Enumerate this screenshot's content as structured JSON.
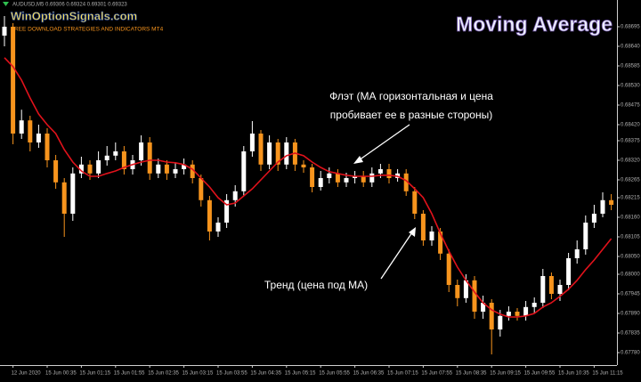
{
  "chart_data": {
    "type": "candlestick",
    "title": "Moving Average",
    "watermark": "WinOptionSignals.com",
    "watermark_subtitle": "FREE DOWNLOAD STRATEGIES AND INDICATORS MT4",
    "symbol_info": "AUDUSD,M5  0.69306 0.69324 0.69301 0.69323",
    "annotations": [
      "Флэт (МА горизонтальная и цена",
      "пробивает ее в разные стороны)",
      "Тренд (цена под МА)"
    ],
    "categories": [
      null,
      "12 Jun 2020",
      null,
      null,
      null,
      "15 Jun 00:35",
      null,
      null,
      null,
      "15 Jun 01:15",
      null,
      null,
      null,
      "15 Jun 01:55",
      null,
      null,
      null,
      "15 Jun 02:35",
      null,
      null,
      null,
      "15 Jun 03:15",
      null,
      null,
      null,
      "15 Jun 03:55",
      null,
      null,
      null,
      "15 Jun 04:35",
      null,
      null,
      null,
      "15 Jun 05:15",
      null,
      null,
      null,
      "15 Jun 05:55",
      null,
      null,
      null,
      "15 Jun 06:35",
      null,
      null,
      null,
      "15 Jun 07:15",
      null,
      null,
      null,
      "15 Jun 07:55",
      null,
      null,
      null,
      "15 Jun 08:35",
      null,
      null,
      null,
      "15 Jun 09:15",
      null,
      null,
      null,
      "15 Jun 09:55",
      null,
      null,
      null,
      "15 Jun 10:35",
      null,
      null,
      null,
      "15 Jun 11:15",
      null,
      null
    ],
    "open": [
      0.6867,
      0.68695,
      0.68395,
      0.68432,
      0.6837,
      0.68395,
      0.6832,
      0.68258,
      0.6817,
      0.68283,
      0.68308,
      0.68283,
      0.6832,
      0.68333,
      0.68345,
      0.68295,
      0.6832,
      0.6837,
      0.68283,
      0.68308,
      0.68283,
      0.68295,
      0.68308,
      0.6827,
      0.68208,
      0.6812,
      0.68145,
      0.68208,
      0.68233,
      0.68345,
      0.68395,
      0.68308,
      0.6837,
      0.68308,
      0.6837,
      0.68308,
      0.683,
      0.68245,
      0.6827,
      0.68283,
      0.68258,
      0.6827,
      0.68275,
      0.68258,
      0.68283,
      0.68295,
      0.6827,
      0.68283,
      0.68233,
      0.6817,
      0.68095,
      0.6812,
      0.68058,
      0.6797,
      0.67933,
      0.67983,
      0.67895,
      0.6792,
      0.67845,
      0.67883,
      0.67895,
      0.67883,
      0.67908,
      0.6792,
      0.67995,
      0.67945,
      0.6797,
      0.68045,
      0.6807,
      0.68145,
      0.6817,
      0.68208
    ],
    "high": [
      0.68725,
      0.68705,
      0.68462,
      0.68445,
      0.6842,
      0.6841,
      0.68335,
      0.6827,
      0.683,
      0.6833,
      0.6832,
      0.68345,
      0.6836,
      0.6837,
      0.6836,
      0.68335,
      0.6839,
      0.68385,
      0.68325,
      0.6832,
      0.68315,
      0.68325,
      0.6832,
      0.6828,
      0.6822,
      0.6816,
      0.68225,
      0.6825,
      0.6836,
      0.6843,
      0.68405,
      0.6839,
      0.6838,
      0.68385,
      0.6838,
      0.6832,
      0.6831,
      0.6829,
      0.683,
      0.68295,
      0.68285,
      0.6829,
      0.6829,
      0.683,
      0.6831,
      0.6831,
      0.68295,
      0.68295,
      0.68245,
      0.6818,
      0.68135,
      0.6813,
      0.6807,
      0.67985,
      0.68,
      0.67995,
      0.6794,
      0.6793,
      0.679,
      0.6791,
      0.67905,
      0.67925,
      0.67935,
      0.68015,
      0.68005,
      0.67985,
      0.6806,
      0.68095,
      0.68165,
      0.68195,
      0.6823,
      0.68225
    ],
    "low": [
      0.6864,
      0.68365,
      0.6838,
      0.68345,
      0.68355,
      0.683,
      0.6824,
      0.68105,
      0.6815,
      0.6827,
      0.68265,
      0.6827,
      0.68305,
      0.6832,
      0.6828,
      0.6828,
      0.68305,
      0.68265,
      0.6827,
      0.68265,
      0.6827,
      0.6828,
      0.68255,
      0.6819,
      0.68095,
      0.68105,
      0.6813,
      0.6819,
      0.6822,
      0.6833,
      0.6829,
      0.68295,
      0.6829,
      0.68295,
      0.6829,
      0.68285,
      0.6823,
      0.68235,
      0.68255,
      0.68245,
      0.68245,
      0.68255,
      0.68245,
      0.68245,
      0.6827,
      0.68255,
      0.6826,
      0.6822,
      0.68155,
      0.6808,
      0.6808,
      0.6804,
      0.6795,
      0.6791,
      0.6792,
      0.67875,
      0.67875,
      0.67775,
      0.67825,
      0.6787,
      0.6787,
      0.6787,
      0.6789,
      0.67905,
      0.6793,
      0.67925,
      0.67955,
      0.6803,
      0.68055,
      0.6813,
      0.6816,
      0.6818
    ],
    "close": [
      0.68695,
      0.68395,
      0.68432,
      0.6837,
      0.68395,
      0.6832,
      0.68258,
      0.6817,
      0.68283,
      0.68308,
      0.68283,
      0.6832,
      0.68333,
      0.68345,
      0.68295,
      0.6832,
      0.6837,
      0.68283,
      0.68308,
      0.68283,
      0.68295,
      0.68308,
      0.6827,
      0.68208,
      0.6812,
      0.68145,
      0.68208,
      0.68233,
      0.68345,
      0.68395,
      0.68308,
      0.6837,
      0.68308,
      0.6837,
      0.68308,
      0.683,
      0.68245,
      0.6827,
      0.68283,
      0.68258,
      0.6827,
      0.68275,
      0.68258,
      0.68283,
      0.68295,
      0.6827,
      0.68283,
      0.68233,
      0.6817,
      0.68095,
      0.6812,
      0.68058,
      0.6797,
      0.67933,
      0.67983,
      0.67895,
      0.6792,
      0.67845,
      0.67883,
      0.67895,
      0.67883,
      0.67908,
      0.6792,
      0.67995,
      0.67945,
      0.6797,
      0.68045,
      0.6807,
      0.68145,
      0.6817,
      0.68208,
      0.68195
    ],
    "up_color": "#ffffff",
    "down_color": "#f7941d",
    "ma": {
      "color": "#e0121b",
      "values": [
        0.68608,
        0.68583,
        0.68545,
        0.68495,
        0.6845,
        0.6842,
        0.68395,
        0.6835,
        0.68315,
        0.6829,
        0.68275,
        0.68275,
        0.68283,
        0.6829,
        0.683,
        0.68308,
        0.68315,
        0.6832,
        0.6832,
        0.68315,
        0.68313,
        0.68308,
        0.68295,
        0.6827,
        0.68245,
        0.68215,
        0.68195,
        0.682,
        0.6822,
        0.6824,
        0.68265,
        0.6829,
        0.68315,
        0.68333,
        0.6834,
        0.68333,
        0.68315,
        0.683,
        0.68288,
        0.68283,
        0.68278,
        0.68275,
        0.68275,
        0.68275,
        0.68278,
        0.68278,
        0.68275,
        0.68263,
        0.6824,
        0.68215,
        0.6817,
        0.68115,
        0.68065,
        0.6802,
        0.67983,
        0.6795,
        0.6792,
        0.679,
        0.67888,
        0.6788,
        0.6788,
        0.67883,
        0.6789,
        0.67908,
        0.6792,
        0.67938,
        0.67958,
        0.67983,
        0.68013,
        0.6804,
        0.6807,
        0.681
      ]
    },
    "ylim": [
      0.67745,
      0.6877
    ],
    "yticks": [
      0.68695,
      {
        "value": 0.6864,
        "label": "0.68640"
      },
      0.68585,
      {
        "value": 0.6853,
        "label": "0.68530"
      },
      0.68475,
      {
        "value": 0.6842,
        "label": "0.68420"
      },
      0.68375,
      {
        "value": 0.6832,
        "label": "0.68320"
      },
      0.68265,
      0.68215,
      {
        "value": 0.6816,
        "label": "0.68160"
      },
      0.68105,
      {
        "value": 0.6805,
        "label": "0.68050"
      },
      {
        "value": 0.68,
        "label": "0.68000"
      },
      0.67945,
      {
        "value": 0.6789,
        "label": "0.67890"
      },
      0.67835,
      {
        "value": 0.6778,
        "label": "0.67780"
      }
    ]
  }
}
